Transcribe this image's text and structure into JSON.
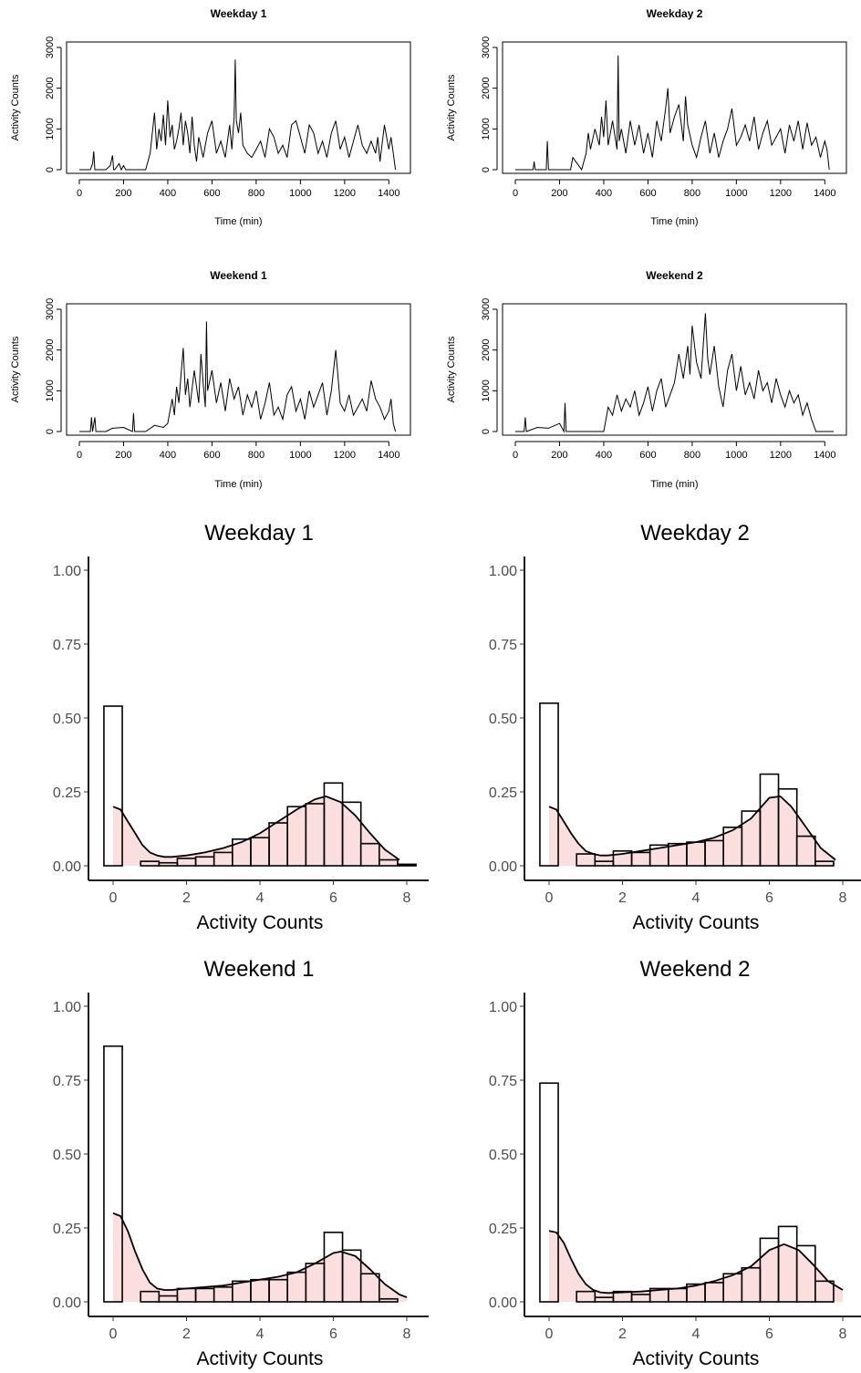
{
  "chart_data": [
    {
      "type": "line",
      "title": "Weekday 1",
      "xlabel": "Time (min)",
      "ylabel": "Activity Counts",
      "xlim": [
        0,
        1440
      ],
      "ylim": [
        0,
        3000
      ],
      "xticks": [
        0,
        200,
        400,
        600,
        800,
        1000,
        1200,
        1400
      ],
      "yticks": [
        0,
        1000,
        2000,
        3000
      ],
      "x": [
        0,
        50,
        60,
        65,
        70,
        120,
        140,
        150,
        155,
        160,
        180,
        190,
        200,
        210,
        240,
        300,
        320,
        340,
        350,
        360,
        370,
        380,
        390,
        400,
        410,
        420,
        430,
        440,
        450,
        460,
        470,
        480,
        490,
        500,
        510,
        520,
        530,
        540,
        560,
        580,
        600,
        620,
        640,
        660,
        680,
        690,
        700,
        705,
        710,
        720,
        730,
        740,
        760,
        780,
        800,
        820,
        840,
        860,
        880,
        900,
        920,
        940,
        950,
        960,
        980,
        1000,
        1020,
        1040,
        1060,
        1080,
        1100,
        1120,
        1140,
        1160,
        1180,
        1200,
        1220,
        1240,
        1260,
        1280,
        1300,
        1320,
        1340,
        1350,
        1360,
        1380,
        1400,
        1410,
        1420,
        1430
      ],
      "y": [
        0,
        0,
        150,
        450,
        0,
        0,
        100,
        350,
        0,
        0,
        150,
        0,
        100,
        0,
        0,
        0,
        400,
        1400,
        500,
        1000,
        700,
        1350,
        600,
        1700,
        800,
        1100,
        500,
        700,
        1000,
        1400,
        600,
        1200,
        900,
        400,
        1300,
        600,
        200,
        800,
        300,
        900,
        1200,
        400,
        700,
        300,
        1100,
        500,
        1300,
        2700,
        1200,
        900,
        1400,
        600,
        400,
        300,
        500,
        700,
        300,
        1000,
        800,
        400,
        600,
        300,
        700,
        1100,
        1200,
        800,
        400,
        1100,
        900,
        400,
        700,
        300,
        900,
        1200,
        500,
        800,
        300,
        700,
        1100,
        600,
        400,
        700,
        400,
        800,
        200,
        1100,
        500,
        800,
        400,
        0
      ]
    },
    {
      "type": "line",
      "title": "Weekday 2",
      "xlabel": "Time (min)",
      "ylabel": "Activity Counts",
      "xlim": [
        0,
        1440
      ],
      "ylim": [
        0,
        3000
      ],
      "xticks": [
        0,
        200,
        400,
        600,
        800,
        1000,
        1200,
        1400
      ],
      "yticks": [
        0,
        1000,
        2000,
        3000
      ],
      "x": [
        0,
        80,
        85,
        90,
        140,
        145,
        150,
        200,
        250,
        260,
        300,
        320,
        330,
        340,
        360,
        380,
        390,
        400,
        410,
        420,
        440,
        460,
        465,
        470,
        480,
        500,
        520,
        540,
        560,
        580,
        600,
        620,
        640,
        660,
        680,
        690,
        700,
        720,
        740,
        760,
        770,
        780,
        800,
        820,
        840,
        860,
        880,
        900,
        920,
        940,
        960,
        980,
        1000,
        1020,
        1040,
        1060,
        1080,
        1100,
        1120,
        1140,
        1160,
        1180,
        1200,
        1220,
        1240,
        1260,
        1280,
        1300,
        1320,
        1340,
        1360,
        1380,
        1400,
        1410,
        1420
      ],
      "y": [
        0,
        0,
        200,
        0,
        0,
        700,
        0,
        0,
        0,
        300,
        0,
        400,
        900,
        500,
        1000,
        600,
        1300,
        800,
        1700,
        600,
        1200,
        500,
        2800,
        700,
        1000,
        400,
        1200,
        600,
        1100,
        400,
        900,
        300,
        1200,
        700,
        1500,
        2000,
        900,
        1300,
        1600,
        700,
        1800,
        1100,
        600,
        300,
        800,
        1200,
        400,
        900,
        300,
        700,
        1000,
        1500,
        600,
        800,
        1100,
        700,
        1300,
        500,
        900,
        1200,
        600,
        800,
        1000,
        400,
        1100,
        700,
        1200,
        500,
        1150,
        600,
        800,
        300,
        700,
        500,
        0
      ]
    },
    {
      "type": "line",
      "title": "Weekend 1",
      "xlabel": "Time (min)",
      "ylabel": "Activity Counts",
      "xlim": [
        0,
        1440
      ],
      "ylim": [
        0,
        3000
      ],
      "xticks": [
        0,
        200,
        400,
        600,
        800,
        1000,
        1200,
        1400
      ],
      "yticks": [
        0,
        1000,
        2000,
        3000
      ],
      "x": [
        0,
        50,
        55,
        60,
        70,
        75,
        120,
        150,
        200,
        240,
        245,
        250,
        300,
        340,
        380,
        400,
        420,
        430,
        440,
        450,
        460,
        470,
        480,
        490,
        500,
        520,
        540,
        550,
        560,
        570,
        575,
        580,
        600,
        620,
        640,
        660,
        680,
        700,
        720,
        740,
        760,
        780,
        800,
        820,
        840,
        860,
        880,
        900,
        920,
        940,
        960,
        980,
        1000,
        1020,
        1040,
        1060,
        1080,
        1100,
        1120,
        1140,
        1160,
        1180,
        1200,
        1220,
        1240,
        1260,
        1280,
        1300,
        1320,
        1340,
        1360,
        1380,
        1400,
        1410,
        1420,
        1430
      ],
      "y": [
        0,
        0,
        350,
        0,
        350,
        0,
        0,
        80,
        100,
        0,
        450,
        0,
        0,
        150,
        100,
        200,
        800,
        400,
        1100,
        700,
        1400,
        2050,
        900,
        1300,
        600,
        1500,
        700,
        1900,
        1200,
        600,
        2700,
        1000,
        1500,
        700,
        1200,
        500,
        1300,
        800,
        1100,
        400,
        900,
        600,
        1000,
        300,
        700,
        1200,
        400,
        600,
        300,
        900,
        1100,
        500,
        800,
        300,
        1000,
        600,
        900,
        1200,
        400,
        1000,
        2000,
        700,
        500,
        900,
        400,
        600,
        800,
        500,
        1250,
        800,
        600,
        300,
        500,
        800,
        200,
        0
      ]
    },
    {
      "type": "line",
      "title": "Weekend 2",
      "xlabel": "Time (min)",
      "ylabel": "Activity Counts",
      "xlim": [
        0,
        1440
      ],
      "ylim": [
        0,
        3000
      ],
      "xticks": [
        0,
        200,
        400,
        600,
        800,
        1000,
        1200,
        1400
      ],
      "yticks": [
        0,
        1000,
        2000,
        3000
      ],
      "x": [
        0,
        40,
        45,
        50,
        100,
        150,
        200,
        220,
        225,
        230,
        300,
        400,
        410,
        420,
        440,
        460,
        480,
        500,
        520,
        540,
        560,
        580,
        600,
        620,
        640,
        660,
        680,
        700,
        720,
        740,
        760,
        780,
        790,
        800,
        820,
        840,
        860,
        870,
        880,
        900,
        920,
        940,
        960,
        980,
        1000,
        1020,
        1040,
        1060,
        1080,
        1100,
        1120,
        1140,
        1160,
        1180,
        1200,
        1220,
        1240,
        1260,
        1280,
        1300,
        1320,
        1340,
        1360,
        1440
      ],
      "y": [
        0,
        0,
        350,
        0,
        100,
        80,
        200,
        0,
        700,
        0,
        0,
        0,
        300,
        600,
        400,
        900,
        500,
        800,
        600,
        1000,
        400,
        700,
        1100,
        500,
        1000,
        1300,
        600,
        900,
        1200,
        1900,
        1300,
        2100,
        1400,
        2600,
        1700,
        1300,
        2900,
        1800,
        1400,
        2100,
        1100,
        600,
        1500,
        1900,
        1000,
        1600,
        900,
        1200,
        800,
        1500,
        1000,
        1200,
        700,
        1300,
        900,
        600,
        1000,
        700,
        900,
        400,
        700,
        300,
        0,
        0
      ]
    },
    {
      "type": "bar",
      "title": "Weekday 1",
      "xlabel": "Activity Counts",
      "ylabel": "",
      "xlim": [
        -0.65,
        8.3
      ],
      "ylim": [
        0,
        1.0
      ],
      "xticks": [
        0,
        2,
        4,
        6,
        8
      ],
      "yticks": [
        "0.00",
        "0.25",
        "0.50",
        "0.75",
        "1.00"
      ],
      "bin_width": 0.5,
      "bin_starts": [
        -0.25,
        0.25,
        0.75,
        1.25,
        1.75,
        2.25,
        2.75,
        3.25,
        3.75,
        4.25,
        4.75,
        5.25,
        5.75,
        6.25,
        6.75,
        7.25,
        7.75
      ],
      "values": [
        0.54,
        0.0,
        0.015,
        0.01,
        0.025,
        0.03,
        0.045,
        0.09,
        0.095,
        0.145,
        0.2,
        0.21,
        0.28,
        0.215,
        0.075,
        0.02,
        0.005
      ],
      "density_x": [
        0,
        0.2,
        0.4,
        0.6,
        0.8,
        1.0,
        1.2,
        1.4,
        1.6,
        2.0,
        2.5,
        3.0,
        3.5,
        4.0,
        4.5,
        5.0,
        5.5,
        5.8,
        6.2,
        6.6,
        7.0,
        7.4,
        7.8
      ],
      "density_y": [
        0.2,
        0.19,
        0.15,
        0.11,
        0.07,
        0.045,
        0.035,
        0.03,
        0.03,
        0.035,
        0.045,
        0.06,
        0.08,
        0.11,
        0.15,
        0.19,
        0.225,
        0.235,
        0.215,
        0.17,
        0.11,
        0.055,
        0.02
      ]
    },
    {
      "type": "bar",
      "title": "Weekday 2",
      "xlabel": "Activity Counts",
      "ylabel": "",
      "xlim": [
        -0.65,
        8.3
      ],
      "ylim": [
        0,
        1.0
      ],
      "xticks": [
        0,
        2,
        4,
        6,
        8
      ],
      "yticks": [
        "0.00",
        "0.25",
        "0.50",
        "0.75",
        "1.00"
      ],
      "bin_width": 0.5,
      "bin_starts": [
        -0.25,
        0.25,
        0.75,
        1.25,
        1.75,
        2.25,
        2.75,
        3.25,
        3.75,
        4.25,
        4.75,
        5.25,
        5.75,
        6.25,
        6.75,
        7.25,
        7.75
      ],
      "values": [
        0.55,
        0.0,
        0.04,
        0.015,
        0.05,
        0.045,
        0.07,
        0.075,
        0.08,
        0.085,
        0.13,
        0.185,
        0.31,
        0.26,
        0.1,
        0.015,
        0.0
      ],
      "density_x": [
        0,
        0.2,
        0.4,
        0.6,
        0.8,
        1.0,
        1.2,
        1.4,
        1.6,
        2.0,
        2.5,
        3.0,
        3.5,
        4.0,
        4.5,
        5.0,
        5.5,
        6.0,
        6.3,
        6.6,
        7.0,
        7.4,
        7.8
      ],
      "density_y": [
        0.2,
        0.19,
        0.15,
        0.11,
        0.075,
        0.05,
        0.04,
        0.035,
        0.035,
        0.04,
        0.05,
        0.06,
        0.07,
        0.08,
        0.095,
        0.12,
        0.16,
        0.23,
        0.235,
        0.2,
        0.13,
        0.06,
        0.02
      ]
    },
    {
      "type": "bar",
      "title": "Weekend 1",
      "xlabel": "Activity Counts",
      "ylabel": "",
      "xlim": [
        -0.65,
        8.3
      ],
      "ylim": [
        0,
        1.0
      ],
      "xticks": [
        0,
        2,
        4,
        6,
        8
      ],
      "yticks": [
        "0.00",
        "0.25",
        "0.50",
        "0.75",
        "1.00"
      ],
      "bin_width": 0.5,
      "bin_starts": [
        -0.25,
        0.25,
        0.75,
        1.25,
        1.75,
        2.25,
        2.75,
        3.25,
        3.75,
        4.25,
        4.75,
        5.25,
        5.75,
        6.25,
        6.75,
        7.25,
        7.75
      ],
      "values": [
        0.865,
        0.0,
        0.035,
        0.02,
        0.045,
        0.045,
        0.05,
        0.07,
        0.075,
        0.075,
        0.1,
        0.13,
        0.235,
        0.175,
        0.095,
        0.01,
        0.0
      ],
      "density_x": [
        0,
        0.2,
        0.4,
        0.6,
        0.8,
        1.0,
        1.2,
        1.4,
        1.6,
        2.0,
        2.5,
        3.0,
        3.5,
        4.0,
        4.5,
        5.0,
        5.5,
        6.0,
        6.2,
        6.6,
        7.0,
        7.4,
        7.8,
        8.0
      ],
      "density_y": [
        0.3,
        0.29,
        0.24,
        0.17,
        0.11,
        0.065,
        0.045,
        0.04,
        0.04,
        0.045,
        0.05,
        0.055,
        0.065,
        0.075,
        0.085,
        0.1,
        0.13,
        0.165,
        0.17,
        0.155,
        0.11,
        0.06,
        0.025,
        0.015
      ]
    },
    {
      "type": "bar",
      "title": "Weekend 2",
      "xlabel": "Activity Counts",
      "ylabel": "",
      "xlim": [
        -0.65,
        8.3
      ],
      "ylim": [
        0,
        1.0
      ],
      "xticks": [
        0,
        2,
        4,
        6,
        8
      ],
      "yticks": [
        "0.00",
        "0.25",
        "0.50",
        "0.75",
        "1.00"
      ],
      "bin_width": 0.5,
      "bin_starts": [
        -0.25,
        0.25,
        0.75,
        1.25,
        1.75,
        2.25,
        2.75,
        3.25,
        3.75,
        4.25,
        4.75,
        5.25,
        5.75,
        6.25,
        6.75,
        7.25,
        7.75
      ],
      "values": [
        0.74,
        0.0,
        0.035,
        0.015,
        0.035,
        0.025,
        0.045,
        0.045,
        0.06,
        0.065,
        0.095,
        0.115,
        0.215,
        0.255,
        0.19,
        0.07,
        0.0
      ],
      "density_x": [
        0,
        0.2,
        0.4,
        0.6,
        0.8,
        1.0,
        1.2,
        1.4,
        1.6,
        2.0,
        2.5,
        3.0,
        3.5,
        4.0,
        4.5,
        5.0,
        5.5,
        6.0,
        6.4,
        6.8,
        7.2,
        7.6,
        8.0
      ],
      "density_y": [
        0.24,
        0.235,
        0.2,
        0.145,
        0.095,
        0.06,
        0.04,
        0.032,
        0.03,
        0.032,
        0.035,
        0.04,
        0.045,
        0.055,
        0.07,
        0.09,
        0.12,
        0.175,
        0.195,
        0.175,
        0.125,
        0.07,
        0.04
      ]
    }
  ]
}
